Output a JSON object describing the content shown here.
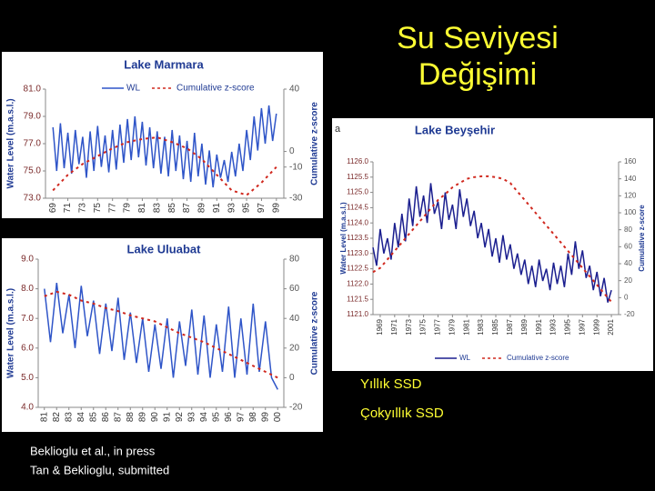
{
  "slide_title": [
    "Su Seviyesi",
    "Değişimi"
  ],
  "bullets": [
    "Yıllık SSD",
    "Çokyıllık SSD"
  ],
  "citations": [
    "Beklioglu et al., in press",
    "Tan & Beklioglu, submitted"
  ],
  "chart_data": [
    {
      "type": "line",
      "title": "Lake Marmara",
      "ylabel": "Water Level (m.a.s.l.)",
      "y2label": "Cumulative z-score",
      "legend": true,
      "xlim": [
        68,
        100
      ],
      "xticks": [
        69,
        71,
        73,
        75,
        77,
        79,
        81,
        83,
        85,
        87,
        89,
        91,
        93,
        95,
        97,
        99
      ],
      "ylim": [
        73,
        81
      ],
      "yticks": [
        {
          "value": 73,
          "label": "73.0"
        },
        {
          "value": 75,
          "label": "75.0"
        },
        {
          "value": 77,
          "label": "77.0"
        },
        {
          "value": 79,
          "label": "79.0"
        },
        {
          "value": 81,
          "label": "81.0"
        }
      ],
      "y2lim": [
        -30,
        40
      ],
      "y2ticks": [
        -30,
        -10,
        0,
        40
      ],
      "series": [
        {
          "name": "WL",
          "color": "#2f55c8",
          "linestyle": "solid",
          "x": [
            69,
            69.5,
            70,
            70.5,
            71,
            71.5,
            72,
            72.5,
            73,
            73.5,
            74,
            74.5,
            75,
            75.5,
            76,
            76.5,
            77,
            77.5,
            78,
            78.5,
            79,
            79.5,
            80,
            80.5,
            81,
            81.5,
            82,
            82.5,
            83,
            83.5,
            84,
            84.5,
            85,
            85.5,
            86,
            86.5,
            87,
            87.5,
            88,
            88.5,
            89,
            89.5,
            90,
            90.5,
            91,
            91.5,
            92,
            92.5,
            93,
            93.5,
            94,
            94.5,
            95,
            95.5,
            96,
            96.5,
            97,
            97.5,
            98,
            98.5,
            99
          ],
          "values": [
            78.2,
            75.0,
            78.5,
            75.2,
            77.8,
            74.8,
            78.0,
            75.5,
            77.5,
            74.5,
            77.9,
            75.0,
            78.3,
            75.3,
            77.6,
            74.9,
            78.0,
            75.1,
            78.4,
            75.6,
            78.8,
            75.8,
            79.0,
            76.0,
            78.6,
            75.4,
            78.2,
            75.2,
            77.9,
            74.8,
            77.5,
            74.6,
            78.0,
            75.0,
            77.6,
            74.4,
            77.2,
            74.2,
            77.8,
            74.6,
            77.0,
            74.0,
            76.5,
            73.8,
            76.2,
            74.5,
            75.8,
            74.2,
            76.4,
            74.6,
            77.0,
            75.0,
            78.0,
            75.8,
            79.0,
            76.5,
            79.6,
            77.0,
            79.8,
            77.2,
            79.2
          ]
        },
        {
          "name": "Cumulative z-score",
          "color": "#d0281e",
          "linestyle": "dashed",
          "axis": "y2",
          "x": [
            69,
            71,
            73,
            75,
            77,
            79,
            81,
            83,
            85,
            87,
            89,
            91,
            93,
            95,
            97,
            99
          ],
          "values": [
            -25,
            -15,
            -8,
            -3,
            2,
            6,
            8,
            9,
            6,
            2,
            -5,
            -15,
            -25,
            -28,
            -20,
            -10
          ]
        }
      ]
    },
    {
      "type": "line",
      "title": "Lake Uluabat",
      "ylabel": "Water Level (m.a.s.l.)",
      "y2label": "Cumulative z-score",
      "legend": false,
      "xlim": [
        80.5,
        100.5
      ],
      "xticks": [
        81,
        82,
        83,
        84,
        85,
        86,
        87,
        88,
        89,
        90,
        91,
        92,
        93,
        94,
        95,
        96,
        97,
        98,
        99,
        {
          "value": 100,
          "label": "00"
        }
      ],
      "ylim": [
        4,
        9
      ],
      "yticks": [
        {
          "value": 4,
          "label": "4.0"
        },
        {
          "value": 5,
          "label": "5.0"
        },
        {
          "value": 6,
          "label": "6.0"
        },
        {
          "value": 7,
          "label": "7.0"
        },
        {
          "value": 8,
          "label": "8.0"
        },
        {
          "value": 9,
          "label": "9.0"
        }
      ],
      "y2lim": [
        -20,
        80
      ],
      "y2ticks": [
        -20,
        0,
        20,
        40,
        60,
        80
      ],
      "series": [
        {
          "color": "#2f55c8",
          "linestyle": "solid",
          "x": [
            81,
            81.5,
            82,
            82.5,
            83,
            83.5,
            84,
            84.5,
            85,
            85.5,
            86,
            86.5,
            87,
            87.5,
            88,
            88.5,
            89,
            89.5,
            90,
            90.5,
            91,
            91.5,
            92,
            92.5,
            93,
            93.5,
            94,
            94.5,
            95,
            95.5,
            96,
            96.5,
            97,
            97.5,
            98,
            98.5,
            99,
            99.5,
            100
          ],
          "values": [
            8.0,
            6.2,
            8.2,
            6.5,
            7.8,
            6.0,
            8.1,
            6.4,
            7.6,
            5.8,
            7.5,
            5.9,
            7.7,
            5.6,
            7.2,
            5.5,
            7.0,
            5.2,
            6.8,
            5.3,
            7.0,
            5.0,
            6.9,
            5.4,
            7.3,
            5.1,
            7.1,
            5.0,
            6.8,
            5.2,
            7.4,
            5.0,
            7.0,
            5.1,
            7.5,
            5.2,
            6.9,
            5.0,
            4.6
          ]
        },
        {
          "color": "#d0281e",
          "linestyle": "dashed",
          "axis": "y2",
          "x": [
            81,
            82,
            83,
            84,
            85,
            86,
            87,
            88,
            89,
            90,
            91,
            92,
            93,
            94,
            95,
            96,
            97,
            98,
            99,
            100
          ],
          "values": [
            55,
            58,
            56,
            52,
            50,
            47,
            45,
            42,
            40,
            38,
            34,
            30,
            27,
            24,
            20,
            16,
            12,
            8,
            4,
            0
          ]
        }
      ]
    },
    {
      "type": "line",
      "title": "Lake Beyşehir",
      "annotation": "a",
      "ylabel": "Water Level (m.a.s.l.)",
      "y2label": "Cumulative z-score",
      "legend": true,
      "xlim": [
        1968,
        2002
      ],
      "xticks": [
        1969,
        1971,
        1973,
        1975,
        1977,
        1979,
        1981,
        1983,
        1985,
        1987,
        1989,
        1991,
        1993,
        1995,
        1997,
        1999,
        2001
      ],
      "ylim": [
        1121,
        1126
      ],
      "yticks": [
        {
          "value": 1121,
          "label": "1121.0"
        },
        1121.5,
        {
          "value": 1122,
          "label": "1122.0"
        },
        1122.5,
        {
          "value": 1123,
          "label": "1123.0"
        },
        1123.5,
        {
          "value": 1124,
          "label": "1124.0"
        },
        1124.5,
        {
          "value": 1125,
          "label": "1125.0"
        },
        1125.5,
        {
          "value": 1126,
          "label": "1126.0"
        }
      ],
      "y2lim": [
        -20,
        160
      ],
      "y2ticks": [
        -20,
        0,
        20,
        40,
        60,
        80,
        100,
        120,
        140,
        160
      ],
      "series": [
        {
          "name": "WL",
          "color": "#1b1f8f",
          "linestyle": "solid",
          "x": [
            1968,
            1968.5,
            1969,
            1969.5,
            1970,
            1970.5,
            1971,
            1971.5,
            1972,
            1972.5,
            1973,
            1973.5,
            1974,
            1974.5,
            1975,
            1975.5,
            1976,
            1976.5,
            1977,
            1977.5,
            1978,
            1978.5,
            1979,
            1979.5,
            1980,
            1980.5,
            1981,
            1981.5,
            1982,
            1982.5,
            1983,
            1983.5,
            1984,
            1984.5,
            1985,
            1985.5,
            1986,
            1986.5,
            1987,
            1987.5,
            1988,
            1988.5,
            1989,
            1989.5,
            1990,
            1990.5,
            1991,
            1991.5,
            1992,
            1992.5,
            1993,
            1993.5,
            1994,
            1994.5,
            1995,
            1995.5,
            1996,
            1996.5,
            1997,
            1997.5,
            1998,
            1998.5,
            1999,
            1999.5,
            2000,
            2000.5,
            2001
          ],
          "values": [
            1123.2,
            1122.6,
            1123.8,
            1123.0,
            1123.5,
            1122.8,
            1124.0,
            1123.2,
            1124.3,
            1123.4,
            1124.8,
            1123.9,
            1125.2,
            1124.2,
            1124.9,
            1124.0,
            1125.3,
            1124.3,
            1124.7,
            1123.8,
            1125.0,
            1124.1,
            1124.6,
            1123.8,
            1125.1,
            1124.2,
            1124.8,
            1123.9,
            1124.4,
            1123.5,
            1124.0,
            1123.2,
            1123.8,
            1122.9,
            1123.5,
            1122.7,
            1123.6,
            1122.8,
            1123.3,
            1122.5,
            1123.0,
            1122.3,
            1122.8,
            1122.0,
            1122.6,
            1121.9,
            1122.8,
            1122.1,
            1122.5,
            1121.8,
            1122.7,
            1122.0,
            1122.6,
            1121.9,
            1123.0,
            1122.3,
            1123.4,
            1122.5,
            1123.1,
            1122.2,
            1122.6,
            1121.8,
            1122.4,
            1121.6,
            1122.2,
            1121.4,
            1121.8
          ]
        },
        {
          "name": "Cumulative z-score",
          "color": "#d0281e",
          "linestyle": "dashed",
          "axis": "y2",
          "x": [
            1968,
            1969,
            1970,
            1971,
            1972,
            1973,
            1974,
            1975,
            1976,
            1977,
            1978,
            1979,
            1980,
            1981,
            1982,
            1983,
            1984,
            1985,
            1986,
            1987,
            1988,
            1989,
            1990,
            1991,
            1992,
            1993,
            1994,
            1995,
            1996,
            1997,
            1998,
            1999,
            2000,
            2001
          ],
          "values": [
            30,
            35,
            45,
            55,
            65,
            75,
            85,
            95,
            105,
            115,
            122,
            130,
            135,
            140,
            142,
            143,
            143,
            142,
            140,
            135,
            125,
            115,
            105,
            95,
            85,
            75,
            65,
            55,
            45,
            35,
            25,
            15,
            5,
            -5
          ]
        }
      ]
    }
  ]
}
